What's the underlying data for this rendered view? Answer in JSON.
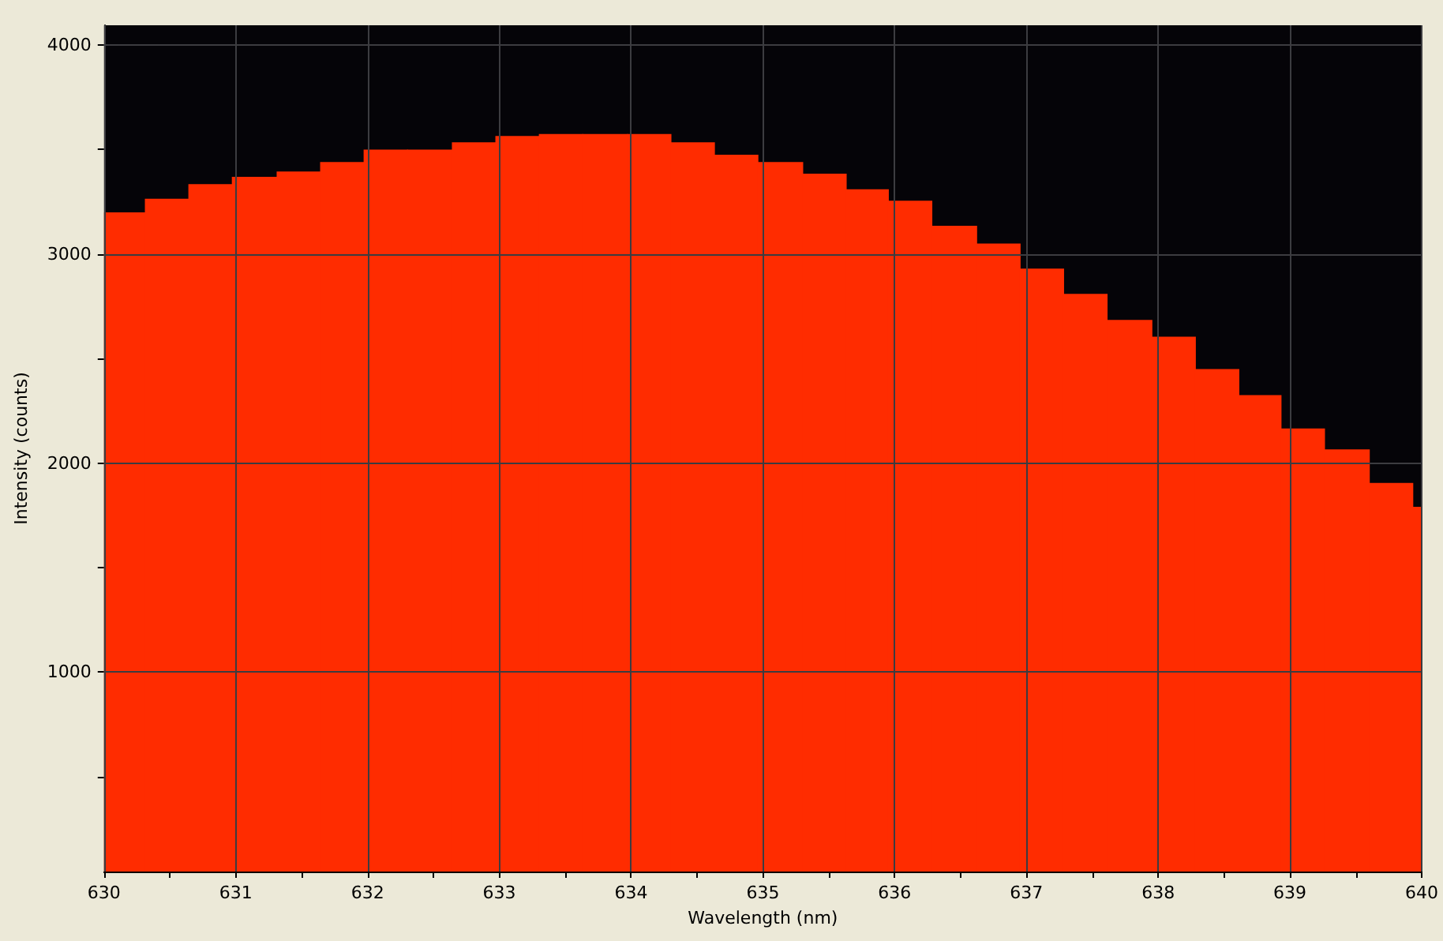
{
  "chart_data": {
    "type": "histogram",
    "xlabel": "Wavelength (nm)",
    "ylabel": "Intensity (counts)",
    "bins": [
      630,
      630.31,
      630.64,
      630.97,
      631.31,
      631.64,
      631.97,
      632.3,
      632.64,
      632.97,
      633.3,
      633.63,
      633.97,
      634.3,
      634.63,
      634.96,
      635.3,
      635.63,
      635.95,
      636.28,
      636.62,
      636.95,
      637.28,
      637.61,
      637.95,
      638.28,
      638.61,
      638.93,
      639.26,
      639.6,
      639.93,
      640
    ],
    "values": [
      3200,
      3265,
      3335,
      3370,
      3395,
      3440,
      3500,
      3500,
      3535,
      3565,
      3575,
      3575,
      3575,
      3535,
      3475,
      3440,
      3385,
      3310,
      3255,
      3135,
      3050,
      2930,
      2810,
      2685,
      2605,
      2450,
      2325,
      2165,
      2065,
      1905,
      1790
    ],
    "color": "#ff2c00",
    "xlim": [
      630,
      640
    ],
    "xticks": [
      630,
      {
        "value": 630.5,
        "label": null
      },
      631,
      {
        "value": 631.5,
        "label": null
      },
      632,
      {
        "value": 632.5,
        "label": null
      },
      633,
      {
        "value": 633.5,
        "label": null
      },
      634,
      {
        "value": 634.5,
        "label": null
      },
      635,
      {
        "value": 635.5,
        "label": null
      },
      636,
      {
        "value": 636.5,
        "label": null
      },
      637,
      {
        "value": 637.5,
        "label": null
      },
      638,
      {
        "value": 638.5,
        "label": null
      },
      639,
      {
        "value": 639.5,
        "label": null
      },
      640
    ],
    "ylim": [
      45,
      4095
    ],
    "yticks": [
      {
        "value": 500,
        "label": null
      },
      1000,
      {
        "value": 1500,
        "label": null
      },
      2000,
      {
        "value": 2500,
        "label": null
      },
      3000,
      {
        "value": 3500,
        "label": null
      },
      4000
    ],
    "grid": true
  }
}
